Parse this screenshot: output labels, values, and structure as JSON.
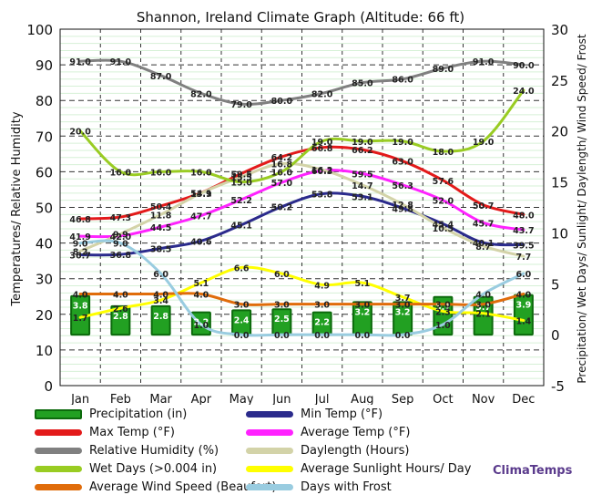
{
  "brand": "ClimaTemps",
  "chart_data": {
    "type": "line",
    "title": "Shannon, Ireland Climate Graph (Altitude: 66 ft)",
    "ylabel_left": "Temperatures/ Relative Humidity",
    "ylabel_right": "Precipitation/ Wet Days/ Sunlight/ Daylength/ Wind Speed/ Frost",
    "ylim_left": [
      0,
      100
    ],
    "ylim_right": [
      -5,
      30
    ],
    "yticks_left": [
      "0",
      "10",
      "20",
      "30",
      "40",
      "50",
      "60",
      "70",
      "80",
      "90",
      "100"
    ],
    "yticks_right": [
      "-5",
      "0",
      "5",
      "10",
      "15",
      "20",
      "25",
      "30"
    ],
    "categories": [
      "Jan",
      "Feb",
      "Mar",
      "Apr",
      "May",
      "Jun",
      "Jul",
      "Aug",
      "Sep",
      "Oct",
      "Nov",
      "Dec"
    ],
    "series": [
      {
        "name": "Precipitation (in)",
        "axis": "right",
        "kind": "bar",
        "color": "#22a022",
        "values": [
          3.8,
          2.8,
          2.8,
          2.2,
          2.4,
          2.5,
          2.2,
          3.2,
          3.2,
          3.7,
          3.7,
          3.9
        ],
        "labels": [
          "3.8",
          "2.8",
          "2.8",
          "2.2",
          "2.4",
          "2.5",
          "2.2",
          "3.2",
          "3.2",
          "3.7",
          "3.7",
          "3.9"
        ]
      },
      {
        "name": "Min Temp (°F)",
        "axis": "left",
        "color": "#2b2b8c",
        "values": [
          36.7,
          36.8,
          38.5,
          40.6,
          45.1,
          50.2,
          53.8,
          53.1,
          49.8,
          45.4,
          40.1,
          39.5
        ],
        "labels": [
          "36.7",
          "36.8",
          "38.5",
          "40.6",
          "45.1",
          "50.2",
          "53.8",
          "53.1",
          "49.8",
          "45.4",
          "40.1",
          "39.5"
        ]
      },
      {
        "name": "Max Temp (°F)",
        "axis": "left",
        "color": "#e31a1a",
        "values": [
          46.8,
          47.3,
          50.4,
          54.1,
          59.5,
          64.2,
          66.8,
          66.2,
          63.0,
          57.6,
          50.7,
          48.0
        ],
        "labels": [
          "46.8",
          "47.3",
          "50.4",
          "54.1",
          "59.5",
          "64.2",
          "66.8",
          "66.2",
          "63.0",
          "57.6",
          "50.7",
          "48.0"
        ]
      },
      {
        "name": "Average Temp (°F)",
        "axis": "left",
        "color": "#ff22ff",
        "values": [
          41.9,
          42.0,
          44.5,
          47.7,
          52.2,
          57.0,
          60.3,
          59.5,
          56.3,
          52.0,
          45.7,
          43.7
        ],
        "labels": [
          "41.9",
          "42.0",
          "44.5",
          "47.7",
          "52.2",
          "57.0",
          "60.3",
          "59.5",
          "56.3",
          "52.0",
          "45.7",
          "43.7"
        ]
      },
      {
        "name": "Relative Humidity (%)",
        "axis": "left",
        "color": "#808080",
        "values": [
          91.0,
          91.0,
          87.0,
          82.0,
          79.0,
          80.0,
          82.0,
          85.0,
          86.0,
          89.0,
          91.0,
          90.0
        ],
        "labels": [
          "91.0",
          "91.0",
          "87.0",
          "82.0",
          "79.0",
          "80.0",
          "82.0",
          "85.0",
          "86.0",
          "89.0",
          "91.0",
          "90.0"
        ]
      },
      {
        "name": "Daylength (Hours)",
        "axis": "right",
        "color": "#d3d3a8",
        "values": [
          8.2,
          9.9,
          11.8,
          13.9,
          15.5,
          16.8,
          16.2,
          14.7,
          12.8,
          10.5,
          8.7,
          7.7
        ],
        "labels": [
          "8.2",
          "9.9",
          "11.8",
          "13.9",
          "15.5",
          "16.8",
          "16.2",
          "14.7",
          "12.8",
          "10.5",
          "8.7",
          "7.7"
        ]
      },
      {
        "name": "Wet Days (>0.004 in)",
        "axis": "right",
        "color": "#99cc22",
        "values": [
          20.0,
          16.0,
          16.0,
          16.0,
          15.0,
          16.0,
          19.0,
          19.0,
          19.0,
          18.0,
          19.0,
          24.0
        ],
        "labels": [
          "20.0",
          "16.0",
          "16.0",
          "16.0",
          "15.0",
          "16.0",
          "19.0",
          "19.0",
          "19.0",
          "18.0",
          "19.0",
          "24.0"
        ]
      },
      {
        "name": "Average Sunlight Hours/ Day",
        "axis": "right",
        "color": "#ffff00",
        "values": [
          1.7,
          2.6,
          3.4,
          5.1,
          6.6,
          6.0,
          4.9,
          5.1,
          3.7,
          2.3,
          2.1,
          1.4
        ],
        "labels": [
          "1.7",
          "2.6",
          "3.4",
          "5.1",
          "6.6",
          "6.0",
          "4.9",
          "5.1",
          "3.7",
          "2.3",
          "2.1",
          "1.4"
        ]
      },
      {
        "name": "Average Wind Speed (Beaufort)",
        "axis": "right",
        "color": "#e06c0a",
        "values": [
          4.0,
          4.0,
          4.0,
          4.0,
          3.0,
          3.0,
          3.0,
          3.0,
          3.0,
          3.0,
          3.0,
          4.0
        ],
        "labels": [
          "4.0",
          "4.0",
          "4.0",
          "4.0",
          "3.0",
          "3.0",
          "3.0",
          "3.0",
          "3.0",
          "3.0",
          "3.0",
          "4.0"
        ]
      },
      {
        "name": "Days with Frost",
        "axis": "right",
        "color": "#99cce0",
        "values": [
          9.0,
          9.0,
          6.0,
          1.0,
          0.0,
          0.0,
          0.0,
          0.0,
          0.0,
          1.0,
          4.0,
          6.0
        ],
        "labels": [
          "9.0",
          "9.0",
          "6.0",
          "1.0",
          "0.0",
          "0.0",
          "0.0",
          "0.0",
          "0.0",
          "1.0",
          "4.0",
          "6.0"
        ]
      }
    ]
  }
}
